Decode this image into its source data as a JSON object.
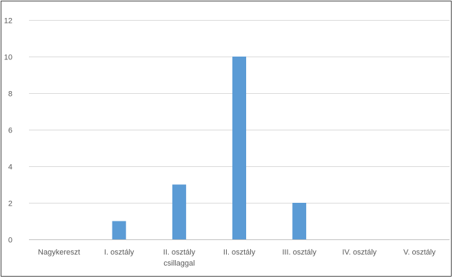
{
  "chart_data": {
    "type": "bar",
    "categories": [
      [
        "Nagykereszt"
      ],
      [
        "I. osztály"
      ],
      [
        "II. osztály",
        "csillaggal"
      ],
      [
        "II. osztály"
      ],
      [
        "III. osztály"
      ],
      [
        "IV. osztály"
      ],
      [
        "V. osztály"
      ]
    ],
    "values": [
      0,
      1,
      3,
      10,
      2,
      0,
      0
    ],
    "yticks": [
      "0",
      "2",
      "4",
      "6",
      "8",
      "10",
      "12"
    ],
    "ylim": [
      0,
      12
    ],
    "grid": true,
    "bar_color": "#5b9bd5",
    "grid_color": "#d9d9d9",
    "axis_color": "#bfbfbf",
    "title": "",
    "xlabel": "",
    "ylabel": ""
  }
}
